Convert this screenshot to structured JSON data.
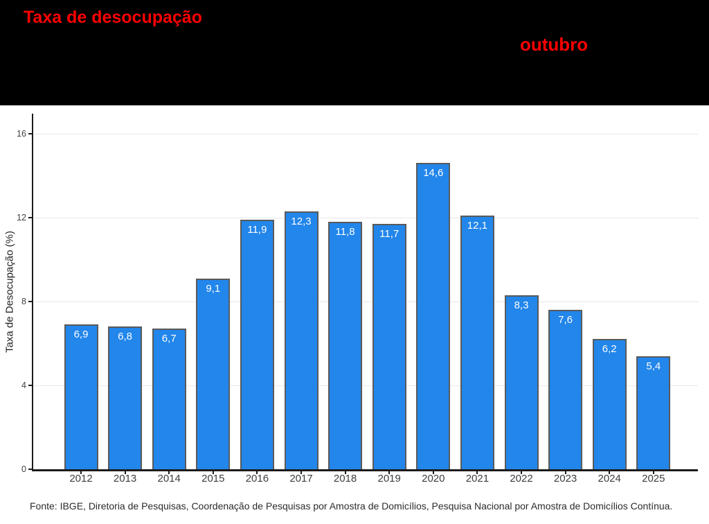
{
  "header": {
    "title": "Taxa de desocupação",
    "subtitle": "outubro",
    "background_color": "#000000",
    "accent_color": "#ff0000"
  },
  "chart_data": {
    "type": "bar",
    "categories": [
      "2012",
      "2013",
      "2014",
      "2015",
      "2016",
      "2017",
      "2018",
      "2019",
      "2020",
      "2021",
      "2022",
      "2023",
      "2024",
      "2025"
    ],
    "values": [
      6.9,
      6.8,
      6.7,
      9.1,
      11.9,
      12.3,
      11.8,
      11.7,
      14.6,
      12.1,
      8.3,
      7.6,
      6.2,
      5.4
    ],
    "value_labels": [
      "6,9",
      "6,8",
      "6,7",
      "9,1",
      "11,9",
      "12,3",
      "11,8",
      "11,7",
      "14,6",
      "12,1",
      "8,3",
      "7,6",
      "6,2",
      "5,4"
    ],
    "title": "",
    "xlabel": "",
    "ylabel": "Taxa de Desocupação (%)",
    "yticks": [
      0,
      4,
      8,
      12,
      16
    ],
    "ylim": [
      0,
      16.9
    ],
    "grid": true,
    "legend": "none",
    "bar_color": "#2286eb",
    "bar_border_color": "#5a5a5a",
    "bar_label_color": "#ffffff"
  },
  "footer": {
    "source": "Fonte: IBGE, Diretoria de Pesquisas, Coordenação de Pesquisas por Amostra de Domicílios, Pesquisa Nacional por Amostra de Domicílios Contínua."
  }
}
